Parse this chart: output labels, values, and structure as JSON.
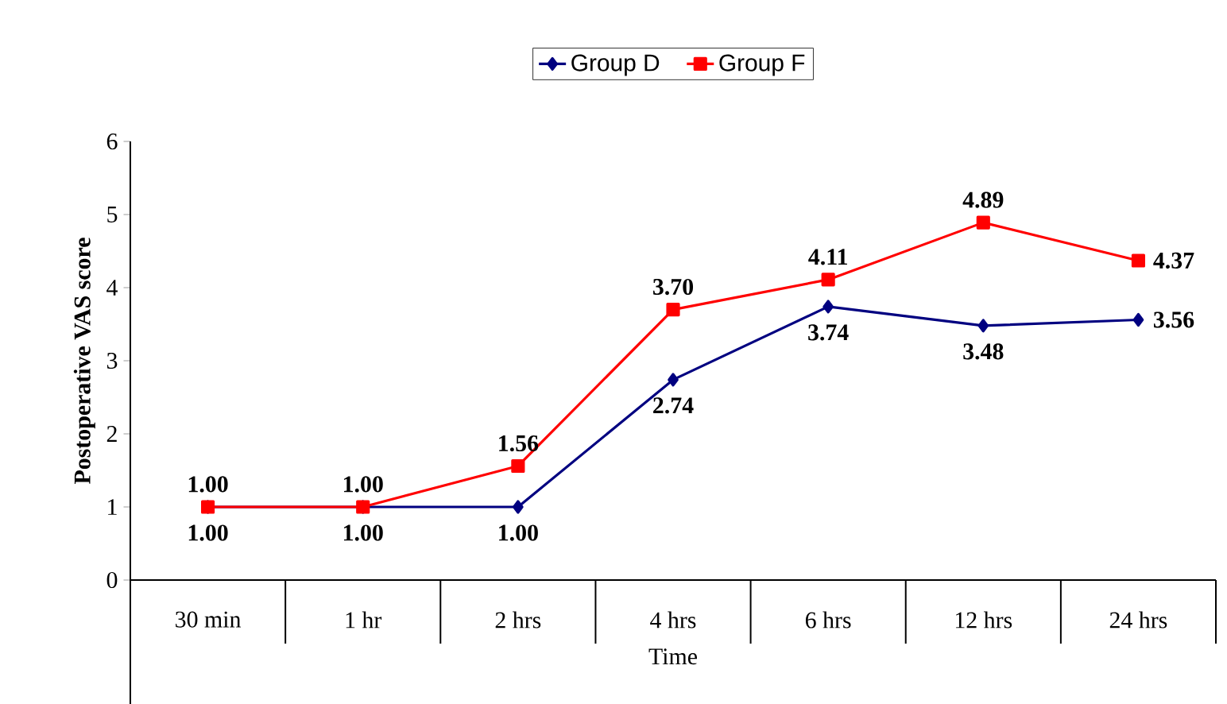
{
  "chart_data": {
    "type": "line",
    "xlabel": "Time",
    "ylabel": "Postoperative VAS score",
    "categories": [
      "30 min",
      "1 hr",
      "2 hrs",
      "4 hrs",
      "6 hrs",
      "12 hrs",
      "24 hrs"
    ],
    "series": [
      {
        "name": "Group D",
        "color": "#000080",
        "marker": "diamond",
        "values": [
          1.0,
          1.0,
          1.0,
          2.74,
          3.74,
          3.48,
          3.56
        ],
        "value_labels": [
          "1.00",
          "1.00",
          "1.00",
          "2.74",
          "3.74",
          "3.48",
          "3.56"
        ]
      },
      {
        "name": "Group F",
        "color": "#ff0000",
        "marker": "square",
        "values": [
          1.0,
          1.0,
          1.56,
          3.7,
          4.11,
          4.89,
          4.37
        ],
        "value_labels": [
          "1.00",
          "1.00",
          "1.56",
          "3.70",
          "4.11",
          "4.89",
          "4.37"
        ]
      }
    ],
    "ylim": [
      0,
      6
    ],
    "yticks": [
      0,
      1,
      2,
      3,
      4,
      5,
      6
    ],
    "grid": false,
    "legend": "top",
    "line_style": "solid"
  }
}
